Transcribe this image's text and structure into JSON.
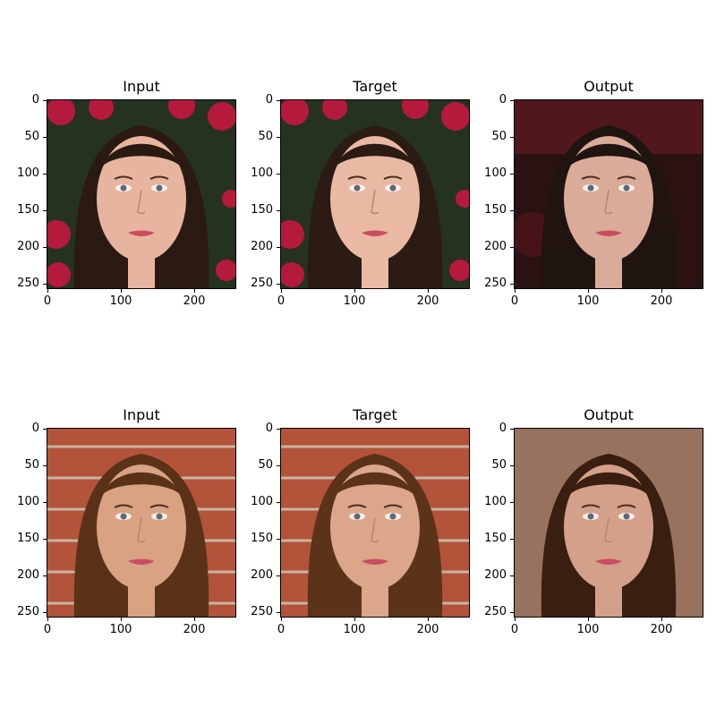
{
  "figure": {
    "rows": [
      {
        "panels": [
          {
            "title": "Input",
            "scene": "roses",
            "face_tone": "#e7b59f",
            "hair": "#2a1a12"
          },
          {
            "title": "Target",
            "scene": "roses",
            "face_tone": "#e9b9a4",
            "hair": "#2b1b13"
          },
          {
            "title": "Output",
            "scene": "dark-red",
            "face_tone": "#d9ab98",
            "hair": "#1f1410"
          }
        ]
      },
      {
        "panels": [
          {
            "title": "Input",
            "scene": "brick",
            "face_tone": "#d9a283",
            "hair": "#5a3218"
          },
          {
            "title": "Target",
            "scene": "brick",
            "face_tone": "#dba689",
            "hair": "#5b3319"
          },
          {
            "title": "Output",
            "scene": "blur-brown",
            "face_tone": "#d3a08a",
            "hair": "#3a1f10"
          }
        ]
      }
    ],
    "y_ticks": [
      "0",
      "50",
      "100",
      "150",
      "200",
      "250"
    ],
    "x_ticks": [
      "0",
      "100",
      "200"
    ]
  }
}
